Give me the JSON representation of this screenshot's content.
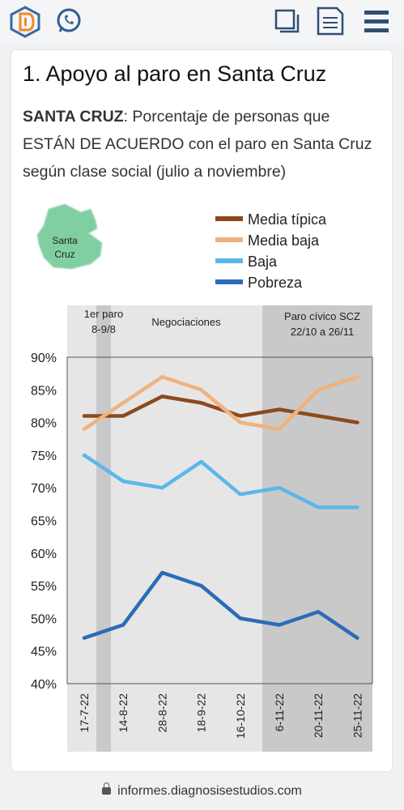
{
  "header": {
    "icons": [
      "logo-icon",
      "whatsapp-icon",
      "copy-icon",
      "document-icon",
      "menu-icon"
    ]
  },
  "article": {
    "title": "1. Apoyo al paro en Santa Cruz",
    "subtitle_bold": "SANTA CRUZ",
    "subtitle_rest": ": Porcentaje de personas que ESTÁN DE ACUERDO con el paro en Santa Cruz según clase social (julio a noviembre)"
  },
  "map": {
    "label_line1": "Santa",
    "label_line2": "Cruz",
    "color": "#7fcfa2"
  },
  "chart_data": {
    "type": "line",
    "x": [
      "17-7-22",
      "14-8-22",
      "28-8-22",
      "18-9-22",
      "16-10-22",
      "6-11-22",
      "20-11-22",
      "25-11-22"
    ],
    "ylim": [
      40,
      90
    ],
    "yticks": [
      "40%",
      "45%",
      "50%",
      "55%",
      "60%",
      "65%",
      "70%",
      "75%",
      "80%",
      "85%",
      "90%"
    ],
    "series": [
      {
        "name": "Media típica",
        "color": "#8b4a1e",
        "values": [
          81,
          81,
          84,
          83,
          81,
          82,
          81,
          80
        ]
      },
      {
        "name": "Media baja",
        "color": "#f0b27e",
        "values": [
          79,
          83,
          87,
          85,
          80,
          79,
          85,
          87
        ]
      },
      {
        "name": "Baja",
        "color": "#5cb6ea",
        "values": [
          75,
          71,
          70,
          74,
          69,
          70,
          67,
          67
        ]
      },
      {
        "name": "Pobreza",
        "color": "#2b6cb8",
        "values": [
          47,
          49,
          57,
          55,
          50,
          49,
          51,
          47
        ]
      }
    ],
    "annotations": [
      {
        "line1": "1er paro",
        "line2": "8-9/8"
      },
      {
        "line1": "Negociaciones",
        "line2": ""
      },
      {
        "line1": "Paro cívico SCZ",
        "line2": "22/10 a 26/11"
      }
    ],
    "legend_position": "top-right",
    "grid": false
  },
  "footer": {
    "url": "informes.diagnosisestudios.com"
  }
}
